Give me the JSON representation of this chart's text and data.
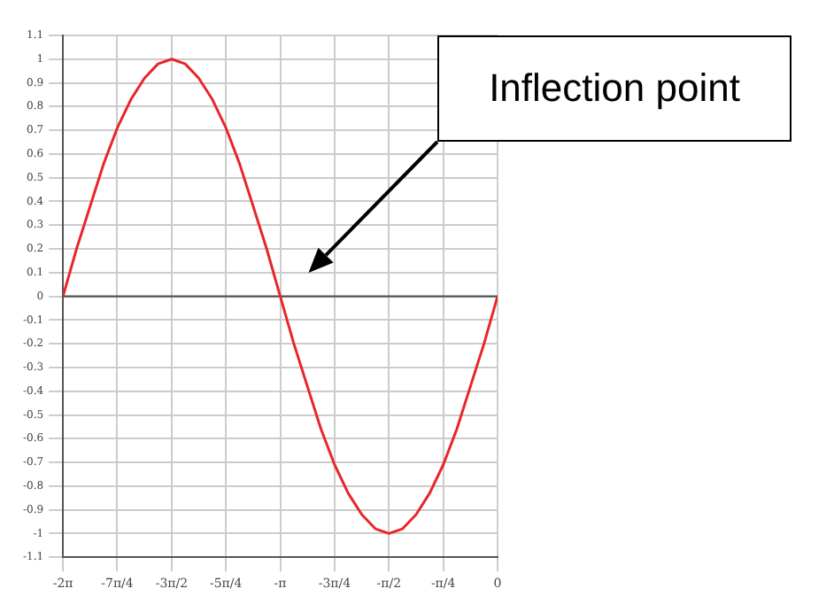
{
  "chart_data": {
    "type": "line",
    "marker": "none",
    "line_style": "solid",
    "grid": true,
    "legend": false,
    "xlim": [
      -6.283,
      0
    ],
    "ylim": [
      -1.1,
      1.1
    ],
    "xticks": [
      {
        "value": -6.283,
        "label": "-2π"
      },
      {
        "value": -5.498,
        "label": "-7π/4"
      },
      {
        "value": -4.712,
        "label": "-3π/2"
      },
      {
        "value": -3.927,
        "label": "-5π/4"
      },
      {
        "value": -3.142,
        "label": "-π"
      },
      {
        "value": -2.356,
        "label": "-3π/4"
      },
      {
        "value": -1.571,
        "label": "-π/2"
      },
      {
        "value": -0.785,
        "label": "-π/4"
      },
      0
    ],
    "yticks": [
      -1.1,
      -1,
      -0.9,
      -0.8,
      -0.7,
      -0.6,
      -0.5,
      -0.4,
      -0.3,
      -0.2,
      -0.1,
      0,
      0.1,
      0.2,
      0.3,
      0.4,
      0.5,
      0.6,
      0.7,
      0.8,
      0.9,
      1,
      1.1
    ],
    "ref_lines": [
      {
        "axis": "y",
        "value": 0,
        "color": "#555555"
      }
    ],
    "annotations": [
      "Inflection point"
    ],
    "series": [
      {
        "color": "#e8262a",
        "x": [
          -6.283,
          -6.087,
          -5.89,
          -5.694,
          -5.498,
          -5.301,
          -5.105,
          -4.909,
          -4.712,
          -4.516,
          -4.32,
          -4.123,
          -3.927,
          -3.731,
          -3.534,
          -3.338,
          -3.142,
          -2.945,
          -2.749,
          -2.553,
          -2.356,
          -2.16,
          -1.963,
          -1.767,
          -1.571,
          -1.374,
          -1.178,
          -0.982,
          -0.785,
          -0.589,
          -0.393,
          -0.196,
          0
        ],
        "values": [
          0,
          0.2,
          0.38,
          0.56,
          0.71,
          0.83,
          0.92,
          0.98,
          1,
          0.98,
          0.92,
          0.83,
          0.71,
          0.56,
          0.38,
          0.2,
          0,
          -0.2,
          -0.38,
          -0.56,
          -0.71,
          -0.83,
          -0.92,
          -0.98,
          -1,
          -0.98,
          -0.92,
          -0.83,
          -0.71,
          -0.56,
          -0.38,
          -0.2,
          0
        ]
      }
    ]
  }
}
